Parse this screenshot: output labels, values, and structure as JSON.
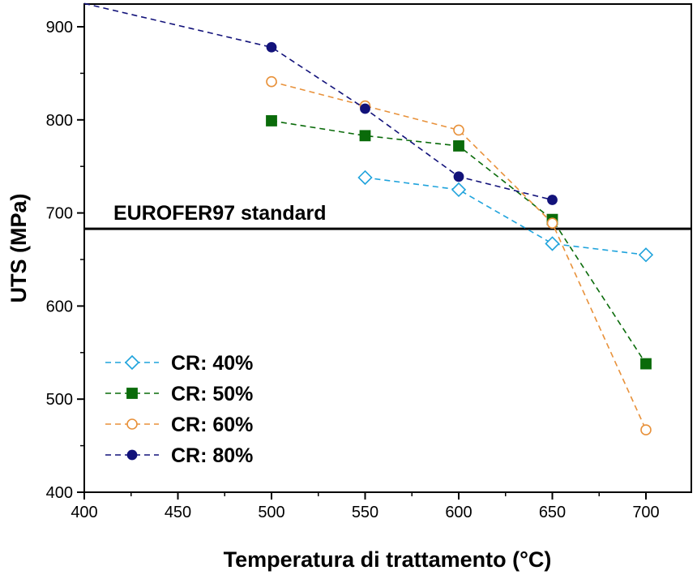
{
  "chart_data": {
    "type": "line",
    "title": "",
    "xlabel": "Temperatura di trattamento (°C)",
    "ylabel": "UTS (MPa)",
    "xlim": [
      400,
      725
    ],
    "ylim": [
      400,
      925
    ],
    "xticks": [
      400,
      450,
      500,
      550,
      600,
      650,
      700
    ],
    "yticks": [
      400,
      500,
      600,
      700,
      800,
      900
    ],
    "legend_position": "bottom-left",
    "reference_line": {
      "y": 683,
      "label": "EUROFER97 standard",
      "color": "#000000"
    },
    "series": [
      {
        "name": "CR: 40%",
        "color": "#1fa3dc",
        "marker": "diamond-open",
        "x": [
          550,
          600,
          650,
          700
        ],
        "y": [
          738,
          725,
          667,
          655
        ]
      },
      {
        "name": "CR: 50%",
        "color": "#0a6b0a",
        "marker": "square-filled",
        "x": [
          500,
          550,
          600,
          650,
          700
        ],
        "y": [
          799,
          783,
          772,
          693,
          538
        ]
      },
      {
        "name": "CR: 60%",
        "color": "#e8913a",
        "marker": "circle-open",
        "x": [
          500,
          550,
          600,
          650,
          700
        ],
        "y": [
          841,
          815,
          789,
          689,
          467
        ]
      },
      {
        "name": "CR: 80%",
        "color": "#12127a",
        "marker": "circle-filled",
        "x": [
          400,
          500,
          550,
          600,
          650
        ],
        "y": [
          925,
          878,
          812,
          739,
          714
        ]
      }
    ]
  }
}
